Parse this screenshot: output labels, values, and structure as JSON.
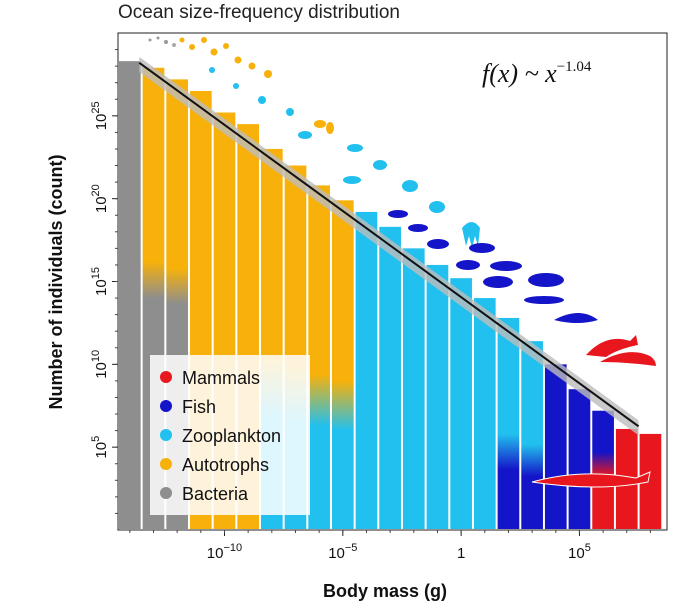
{
  "chart_data": {
    "type": "bar",
    "title": "Ocean size-frequency distribution",
    "xlabel": "Body mass (g)",
    "ylabel": "Number of individuals (count)",
    "x_scale": "log10",
    "y_scale": "log10",
    "xlim_log10": [
      -14.5,
      8.7
    ],
    "ylim_log10": [
      0,
      30
    ],
    "x_ticks": [
      {
        "log": -10,
        "label": "10",
        "exp": "−10"
      },
      {
        "log": -5,
        "label": "10",
        "exp": "−5"
      },
      {
        "log": 0,
        "label": "1",
        "exp": ""
      },
      {
        "log": 5,
        "label": "10",
        "exp": "5"
      }
    ],
    "y_ticks": [
      {
        "log": 5,
        "label": "10",
        "exp": "5"
      },
      {
        "log": 10,
        "label": "10",
        "exp": "10"
      },
      {
        "log": 15,
        "label": "10",
        "exp": "15"
      },
      {
        "log": 20,
        "label": "10",
        "exp": "20"
      },
      {
        "log": 25,
        "label": "10",
        "exp": "25"
      }
    ],
    "bin_width_log10": 1,
    "bars": [
      {
        "x_log10": -14,
        "y_log10": 28.3,
        "group": "Bacteria"
      },
      {
        "x_log10": -13,
        "y_log10": 27.9,
        "group": "Autotrophs"
      },
      {
        "x_log10": -12,
        "y_log10": 27.2,
        "group": "Autotrophs"
      },
      {
        "x_log10": -11,
        "y_log10": 26.5,
        "group": "Autotrophs"
      },
      {
        "x_log10": -10,
        "y_log10": 25.2,
        "group": "Autotrophs"
      },
      {
        "x_log10": -9,
        "y_log10": 24.5,
        "group": "Autotrophs"
      },
      {
        "x_log10": -8,
        "y_log10": 23.0,
        "group": "Autotrophs"
      },
      {
        "x_log10": -7,
        "y_log10": 22.0,
        "group": "Autotrophs"
      },
      {
        "x_log10": -6,
        "y_log10": 20.8,
        "group": "Autotrophs"
      },
      {
        "x_log10": -5,
        "y_log10": 19.9,
        "group": "Autotrophs"
      },
      {
        "x_log10": -4,
        "y_log10": 19.2,
        "group": "Zooplankton"
      },
      {
        "x_log10": -3,
        "y_log10": 18.3,
        "group": "Zooplankton"
      },
      {
        "x_log10": -2,
        "y_log10": 17.0,
        "group": "Zooplankton"
      },
      {
        "x_log10": -1,
        "y_log10": 16.0,
        "group": "Zooplankton"
      },
      {
        "x_log10": 0,
        "y_log10": 15.2,
        "group": "Zooplankton"
      },
      {
        "x_log10": 1,
        "y_log10": 14.0,
        "group": "Zooplankton"
      },
      {
        "x_log10": 2,
        "y_log10": 12.8,
        "group": "Fish"
      },
      {
        "x_log10": 3,
        "y_log10": 11.4,
        "group": "Fish"
      },
      {
        "x_log10": 4,
        "y_log10": 10.0,
        "group": "Fish"
      },
      {
        "x_log10": 5,
        "y_log10": 8.5,
        "group": "Fish"
      },
      {
        "x_log10": 6,
        "y_log10": 7.2,
        "group": "Fish"
      },
      {
        "x_log10": 7,
        "y_log10": 6.1,
        "group": "Mammals"
      },
      {
        "x_log10": 8,
        "y_log10": 5.8,
        "group": "Mammals"
      }
    ],
    "fit": {
      "equation_lhs": "f(x) ~ x",
      "exponent": "−1.04",
      "slope": -1.04,
      "x_log10_range": [
        -13.6,
        7.5
      ],
      "y_log10_start": 28.2
    },
    "legend": {
      "placement": "bottom-left",
      "entries": [
        {
          "name": "Mammals",
          "color": "#e8171e"
        },
        {
          "name": "Fish",
          "color": "#1414c8"
        },
        {
          "name": "Zooplankton",
          "color": "#22c0ee"
        },
        {
          "name": "Autotrophs",
          "color": "#f7b10a"
        },
        {
          "name": "Bacteria",
          "color": "#8e8e8e"
        }
      ]
    },
    "colors": {
      "Mammals": "#e8171e",
      "Fish": "#1414c8",
      "Zooplankton": "#22c0ee",
      "Autotrophs": "#f7b10a",
      "Bacteria": "#8e8e8e"
    },
    "grid": false
  }
}
